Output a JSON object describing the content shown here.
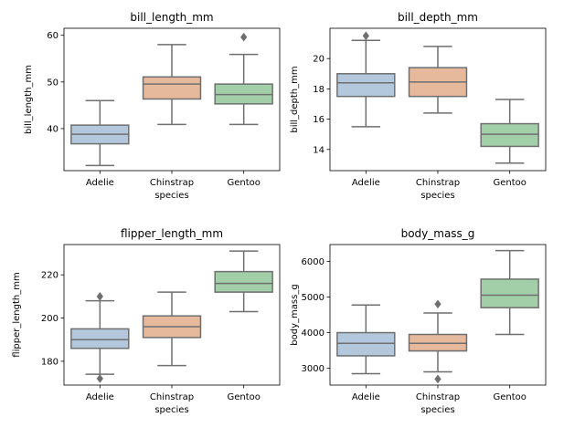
{
  "chart_data": [
    {
      "type": "box",
      "title": "bill_length_mm",
      "xlabel": "species",
      "ylabel": "bill_length_mm",
      "categories": [
        "Adelie",
        "Chinstrap",
        "Gentoo"
      ],
      "ylim": [
        31,
        61.5
      ],
      "yticks": [
        40,
        50,
        60
      ],
      "boxes": [
        {
          "whislo": 32.1,
          "q1": 36.75,
          "med": 38.8,
          "q3": 40.75,
          "whishi": 46.0,
          "fliers": []
        },
        {
          "whislo": 40.9,
          "q1": 46.35,
          "med": 49.55,
          "q3": 51.08,
          "whishi": 58.0,
          "fliers": []
        },
        {
          "whislo": 40.9,
          "q1": 45.3,
          "med": 47.3,
          "q3": 49.55,
          "whishi": 55.9,
          "fliers": [
            59.6
          ]
        }
      ]
    },
    {
      "type": "box",
      "title": "bill_depth_mm",
      "xlabel": "species",
      "ylabel": "bill_depth_mm",
      "categories": [
        "Adelie",
        "Chinstrap",
        "Gentoo"
      ],
      "ylim": [
        12.6,
        22.0
      ],
      "yticks": [
        14,
        16,
        18,
        20
      ],
      "boxes": [
        {
          "whislo": 15.5,
          "q1": 17.5,
          "med": 18.4,
          "q3": 19.0,
          "whishi": 21.2,
          "fliers": [
            21.5
          ]
        },
        {
          "whislo": 16.4,
          "q1": 17.5,
          "med": 18.45,
          "q3": 19.4,
          "whishi": 20.8,
          "fliers": []
        },
        {
          "whislo": 13.1,
          "q1": 14.2,
          "med": 15.0,
          "q3": 15.7,
          "whishi": 17.3,
          "fliers": []
        }
      ]
    },
    {
      "type": "box",
      "title": "flipper_length_mm",
      "xlabel": "species",
      "ylabel": "flipper_length_mm",
      "categories": [
        "Adelie",
        "Chinstrap",
        "Gentoo"
      ],
      "ylim": [
        169,
        234
      ],
      "yticks": [
        180,
        200,
        220
      ],
      "boxes": [
        {
          "whislo": 174,
          "q1": 186,
          "med": 190,
          "q3": 195,
          "whishi": 208,
          "fliers": [
            210,
            172
          ]
        },
        {
          "whislo": 178,
          "q1": 191,
          "med": 196,
          "q3": 201,
          "whishi": 212,
          "fliers": []
        },
        {
          "whislo": 203,
          "q1": 212,
          "med": 216,
          "q3": 221.5,
          "whishi": 231,
          "fliers": []
        }
      ]
    },
    {
      "type": "box",
      "title": "body_mass_g",
      "xlabel": "species",
      "ylabel": "body_mass_g",
      "categories": [
        "Adelie",
        "Chinstrap",
        "Gentoo"
      ],
      "ylim": [
        2530,
        6470
      ],
      "yticks": [
        3000,
        4000,
        5000,
        6000
      ],
      "boxes": [
        {
          "whislo": 2850,
          "q1": 3350,
          "med": 3700,
          "q3": 4000,
          "whishi": 4775,
          "fliers": []
        },
        {
          "whislo": 2900,
          "q1": 3487,
          "med": 3700,
          "q3": 3950,
          "whishi": 4550,
          "fliers": [
            4800,
            2700
          ]
        },
        {
          "whislo": 3950,
          "q1": 4700,
          "med": 5050,
          "q3": 5500,
          "whishi": 6300,
          "fliers": []
        }
      ]
    }
  ],
  "colors": {
    "Adelie": "#b3c8dd",
    "Chinstrap": "#e6b89c",
    "Gentoo": "#a2cfa8",
    "box_edge": "#6f6f6f"
  }
}
